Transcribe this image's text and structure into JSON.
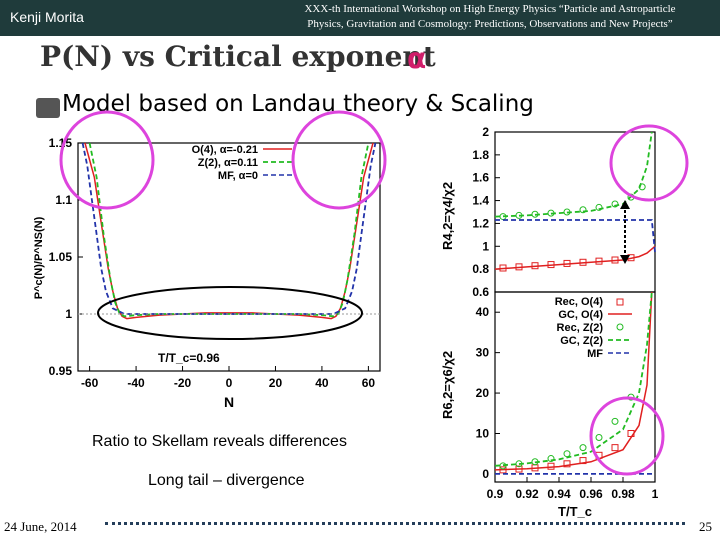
{
  "header": {
    "author": "Kenji Morita",
    "workshop_line1": "XXX-th International Workshop on High Energy Physics “Particle and Astroparticle",
    "workshop_line2": "Physics, Gravitation and Cosmology: Predictions, Observations and New Projects”"
  },
  "title": "P(N) vs Critical exponent",
  "title_symbol": "α",
  "subtitle": "Model based on Landau theory & Scaling",
  "notes": [
    "Ratio to Skellam reveals differences",
    "Long tail – divergence"
  ],
  "footer": {
    "date": "24 June, 2014",
    "page": "25"
  },
  "colors": {
    "o4": "#e02020",
    "z2": "#22bb22",
    "mf": "#2233aa",
    "highlight": "#dd44dd"
  },
  "chart_data": [
    {
      "type": "line",
      "xlabel": "N",
      "ylabel": "P^c(N)/P^NS(N)",
      "xlim": [
        -65,
        65
      ],
      "ylim": [
        0.95,
        1.15
      ],
      "xticks": [
        "-60",
        "-40",
        "-20",
        "0",
        "20",
        "40",
        "60"
      ],
      "xtick_values": [
        -60,
        -40,
        -20,
        0,
        20,
        40,
        60
      ],
      "yticks": [
        "0.95",
        "1",
        "1.05",
        "1.1",
        "1.15"
      ],
      "ytick_values": [
        0.95,
        1.0,
        1.05,
        1.1,
        1.15
      ],
      "annotation": "T/T_c=0.96",
      "legend_position": "top-right",
      "series": [
        {
          "name": "O(4), α=-0.21",
          "style": "solid",
          "color": "#e02020",
          "x": [
            -62,
            -58,
            -55,
            -52,
            -50,
            -48,
            -46,
            -44,
            -40,
            -30,
            -20,
            -10,
            0,
            10,
            20,
            30,
            40,
            44,
            46,
            48,
            50,
            52,
            55,
            58,
            62
          ],
          "y": [
            1.16,
            1.12,
            1.08,
            1.04,
            1.02,
            1.005,
            0.998,
            0.996,
            0.997,
            0.999,
            1.0,
            1.001,
            1.001,
            1.001,
            1.0,
            0.999,
            0.997,
            0.996,
            0.998,
            1.005,
            1.02,
            1.04,
            1.08,
            1.12,
            1.16
          ]
        },
        {
          "name": "Z(2), α=0.11",
          "style": "dashed",
          "color": "#22bb22",
          "x": [
            -60,
            -57,
            -54,
            -51,
            -49,
            -47,
            -45,
            -40,
            -30,
            -20,
            -10,
            0,
            10,
            20,
            30,
            40,
            45,
            47,
            49,
            51,
            54,
            57,
            60
          ],
          "y": [
            1.16,
            1.12,
            1.07,
            1.03,
            1.01,
            1.0,
            0.998,
            0.999,
            1.0,
            1.0,
            1.0,
            1.0,
            1.0,
            1.0,
            1.0,
            0.999,
            0.998,
            1.0,
            1.01,
            1.03,
            1.07,
            1.12,
            1.16
          ]
        },
        {
          "name": "MF, α=0",
          "style": "dashed",
          "color": "#2233aa",
          "x": [
            -63,
            -61,
            -59,
            -57,
            -55,
            -53,
            -50,
            -45,
            -40,
            -20,
            0,
            20,
            40,
            45,
            50,
            53,
            55,
            57,
            59,
            61,
            63
          ],
          "y": [
            1.16,
            1.13,
            1.1,
            1.07,
            1.04,
            1.02,
            1.005,
            1.0,
            1.0,
            1.0,
            1.0,
            1.0,
            1.0,
            1.0,
            1.005,
            1.02,
            1.04,
            1.07,
            1.1,
            1.13,
            1.16
          ]
        }
      ]
    },
    {
      "type": "line",
      "xlabel": "",
      "ylabel": "R4,2=χ4/χ2",
      "xlim": [
        0.9,
        1.0
      ],
      "ylim": [
        0.6,
        2.0
      ],
      "yticks": [
        "0.6",
        "0.8",
        "1",
        "1.2",
        "1.4",
        "1.6",
        "1.8",
        "2"
      ],
      "ytick_values": [
        0.6,
        0.8,
        1.0,
        1.2,
        1.4,
        1.6,
        1.8,
        2.0
      ],
      "series": [
        {
          "name": "Rec, O(4)",
          "style": "markers",
          "color": "#e02020",
          "x": [
            0.905,
            0.915,
            0.925,
            0.935,
            0.945,
            0.955,
            0.965,
            0.975,
            0.985
          ],
          "y": [
            0.81,
            0.82,
            0.83,
            0.84,
            0.85,
            0.86,
            0.87,
            0.88,
            0.9
          ]
        },
        {
          "name": "GC, O(4)",
          "style": "solid",
          "color": "#e02020",
          "x": [
            0.9,
            0.92,
            0.94,
            0.96,
            0.98,
            0.99,
            0.995,
            1.0
          ],
          "y": [
            0.8,
            0.82,
            0.84,
            0.86,
            0.88,
            0.91,
            0.94,
            1.0
          ]
        },
        {
          "name": "Rec, Z(2)",
          "style": "markers",
          "color": "#22bb22",
          "x": [
            0.905,
            0.915,
            0.925,
            0.935,
            0.945,
            0.955,
            0.965,
            0.975,
            0.985,
            0.992
          ],
          "y": [
            1.26,
            1.27,
            1.28,
            1.29,
            1.3,
            1.32,
            1.34,
            1.37,
            1.43,
            1.52
          ]
        },
        {
          "name": "GC, Z(2)",
          "style": "dashed",
          "color": "#22bb22",
          "x": [
            0.9,
            0.92,
            0.94,
            0.96,
            0.98,
            0.99,
            0.995,
            0.998
          ],
          "y": [
            1.26,
            1.27,
            1.29,
            1.31,
            1.37,
            1.5,
            1.7,
            2.0
          ]
        },
        {
          "name": "MF",
          "style": "dashed",
          "color": "#2233aa",
          "x": [
            0.9,
            0.99,
            0.998,
            1.0
          ],
          "y": [
            1.23,
            1.23,
            1.23,
            0.95
          ]
        }
      ]
    },
    {
      "type": "line",
      "xlabel": "T/T_c",
      "ylabel": "R6,2=χ6/χ2",
      "xlim": [
        0.9,
        1.0
      ],
      "ylim": [
        -2,
        45
      ],
      "xticks": [
        "0.9",
        "0.92",
        "0.94",
        "0.96",
        "0.98",
        "1"
      ],
      "xtick_values": [
        0.9,
        0.92,
        0.94,
        0.96,
        0.98,
        1.0
      ],
      "yticks": [
        "0",
        "10",
        "20",
        "30",
        "40"
      ],
      "ytick_values": [
        0,
        10,
        20,
        30,
        40
      ],
      "legend_position": "top-right",
      "series": [
        {
          "name": "Rec, O(4)",
          "style": "markers",
          "color": "#e02020",
          "x": [
            0.905,
            0.915,
            0.925,
            0.935,
            0.945,
            0.955,
            0.965,
            0.975,
            0.985
          ],
          "y": [
            1.0,
            1.2,
            1.5,
            1.9,
            2.5,
            3.3,
            4.6,
            6.5,
            10
          ]
        },
        {
          "name": "GC, O(4)",
          "style": "solid",
          "color": "#e02020",
          "x": [
            0.9,
            0.92,
            0.94,
            0.96,
            0.98,
            0.99,
            0.995,
            0.998
          ],
          "y": [
            1.0,
            1.3,
            1.8,
            3.0,
            6.0,
            12,
            22,
            45
          ]
        },
        {
          "name": "Rec, Z(2)",
          "style": "markers",
          "color": "#22bb22",
          "x": [
            0.905,
            0.915,
            0.925,
            0.935,
            0.945,
            0.955,
            0.965,
            0.975,
            0.985
          ],
          "y": [
            2.0,
            2.5,
            3.0,
            3.8,
            5.0,
            6.5,
            9.0,
            13,
            19
          ]
        },
        {
          "name": "GC, Z(2)",
          "style": "dashed",
          "color": "#22bb22",
          "x": [
            0.9,
            0.92,
            0.94,
            0.96,
            0.98,
            0.99,
            0.995,
            0.998
          ],
          "y": [
            2.0,
            2.6,
            3.6,
            5.5,
            11,
            20,
            32,
            45
          ]
        },
        {
          "name": "MF",
          "style": "dashed",
          "color": "#2233aa",
          "x": [
            0.9,
            1.0
          ],
          "y": [
            0,
            0
          ]
        }
      ]
    }
  ]
}
